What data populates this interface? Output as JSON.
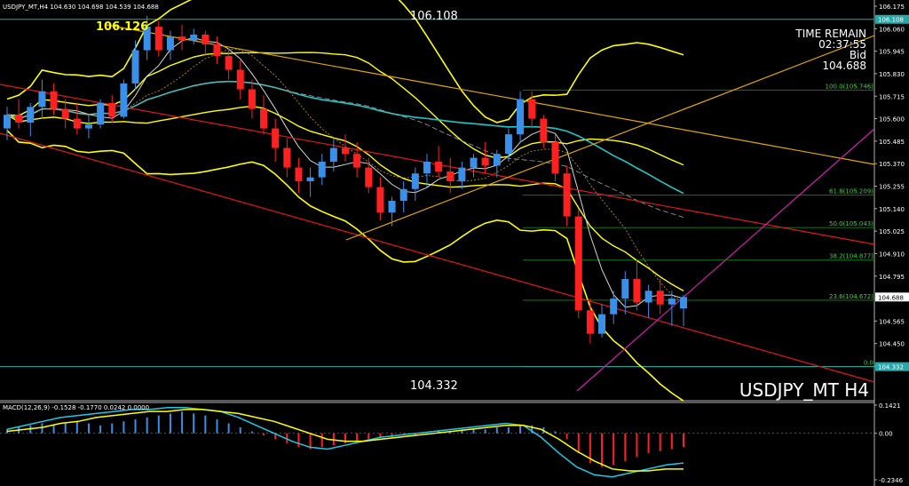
{
  "header": {
    "symbol_info": "USDJPY_MT,H4  104.630 104.698 104.539 104.688"
  },
  "info_box": {
    "line1": "TIME REMAIN",
    "line2": "02:37:55",
    "line3": "Bid",
    "line4": "104.688"
  },
  "watermark": "USDJPY_MT H4",
  "labels": {
    "high_line": "106.108",
    "low_line": "104.332",
    "peak_label": "106.126"
  },
  "macd": {
    "title": "MACD(12,26,9) -0.1528 -0.1770 0.0242 0.0000"
  },
  "colors": {
    "bull": "#3a8fe8",
    "bear": "#ff2020",
    "bollinger": "#ffff00",
    "channel": "#e01818",
    "trend": "#e0a800",
    "ma_long": "#20c8c8",
    "ma_short": "#d8d8d8",
    "fib": "#0e7a0e",
    "diag": "#d020b0",
    "hline": "#2aa8a8",
    "fib_label": "#3cd23c"
  },
  "chart_data": [
    {
      "type": "candlestick",
      "price_range": [
        104.332,
        106.175
      ],
      "y_ticks": [
        "106.175",
        "106.060",
        "105.945",
        "105.830",
        "105.715",
        "105.600",
        "105.485",
        "105.370",
        "105.255",
        "105.140",
        "105.025",
        "104.910",
        "104.795",
        "104.680",
        "104.565",
        "104.450",
        "104.335"
      ],
      "ohlc": [
        [
          105.55,
          105.66,
          105.49,
          105.62
        ],
        [
          105.62,
          105.7,
          105.55,
          105.58
        ],
        [
          105.58,
          105.68,
          105.51,
          105.66
        ],
        [
          105.66,
          105.8,
          105.6,
          105.74
        ],
        [
          105.74,
          105.78,
          105.62,
          105.65
        ],
        [
          105.65,
          105.7,
          105.55,
          105.6
        ],
        [
          105.6,
          105.68,
          105.52,
          105.55
        ],
        [
          105.55,
          105.62,
          105.5,
          105.57
        ],
        [
          105.57,
          105.7,
          105.55,
          105.68
        ],
        [
          105.68,
          105.72,
          105.58,
          105.61
        ],
        [
          105.61,
          105.8,
          105.6,
          105.78
        ],
        [
          105.78,
          106.0,
          105.75,
          105.95
        ],
        [
          105.95,
          106.126,
          105.9,
          106.07
        ],
        [
          106.07,
          106.1,
          105.92,
          105.95
        ],
        [
          105.95,
          106.05,
          105.9,
          106.02
        ],
        [
          106.02,
          106.08,
          105.95,
          106.0
        ],
        [
          106.0,
          106.06,
          105.98,
          106.03
        ],
        [
          106.03,
          106.05,
          105.92,
          105.98
        ],
        [
          105.98,
          106.02,
          105.88,
          105.92
        ],
        [
          105.92,
          105.96,
          105.8,
          105.85
        ],
        [
          105.85,
          105.9,
          105.7,
          105.75
        ],
        [
          105.75,
          105.8,
          105.6,
          105.65
        ],
        [
          105.65,
          105.72,
          105.52,
          105.55
        ],
        [
          105.55,
          105.6,
          105.38,
          105.45
        ],
        [
          105.45,
          105.5,
          105.3,
          105.35
        ],
        [
          105.35,
          105.4,
          105.22,
          105.28
        ],
        [
          105.28,
          105.35,
          105.2,
          105.3
        ],
        [
          105.3,
          105.42,
          105.26,
          105.38
        ],
        [
          105.38,
          105.5,
          105.33,
          105.45
        ],
        [
          105.45,
          105.52,
          105.38,
          105.42
        ],
        [
          105.42,
          105.48,
          105.3,
          105.35
        ],
        [
          105.35,
          105.4,
          105.22,
          105.25
        ],
        [
          105.25,
          105.3,
          105.08,
          105.12
        ],
        [
          105.12,
          105.2,
          105.05,
          105.18
        ],
        [
          105.18,
          105.28,
          105.12,
          105.24
        ],
        [
          105.24,
          105.35,
          105.18,
          105.32
        ],
        [
          105.32,
          105.42,
          105.25,
          105.38
        ],
        [
          105.38,
          105.46,
          105.3,
          105.33
        ],
        [
          105.33,
          105.4,
          105.22,
          105.28
        ],
        [
          105.28,
          105.38,
          105.24,
          105.35
        ],
        [
          105.35,
          105.42,
          105.3,
          105.4
        ],
        [
          105.4,
          105.48,
          105.32,
          105.36
        ],
        [
          105.36,
          105.44,
          105.3,
          105.42
        ],
        [
          105.42,
          105.55,
          105.38,
          105.52
        ],
        [
          105.52,
          105.74,
          105.48,
          105.7
        ],
        [
          105.7,
          105.74,
          105.55,
          105.6
        ],
        [
          105.6,
          105.62,
          105.45,
          105.48
        ],
        [
          105.48,
          105.52,
          105.28,
          105.32
        ],
        [
          105.32,
          105.36,
          105.05,
          105.1
        ],
        [
          105.1,
          105.14,
          104.58,
          104.62
        ],
        [
          104.62,
          104.68,
          104.45,
          104.5
        ],
        [
          104.5,
          104.65,
          104.48,
          104.6
        ],
        [
          104.6,
          104.72,
          104.55,
          104.68
        ],
        [
          104.68,
          104.82,
          104.6,
          104.78
        ],
        [
          104.78,
          104.88,
          104.62,
          104.66
        ],
        [
          104.66,
          104.75,
          104.58,
          104.72
        ],
        [
          104.72,
          104.78,
          104.6,
          104.65
        ],
        [
          104.65,
          104.72,
          104.54,
          104.68
        ],
        [
          104.63,
          104.698,
          104.539,
          104.688
        ]
      ],
      "fibonacci": [
        {
          "label": "100.0(105.746)",
          "price": 105.746
        },
        {
          "label": "61.8(105.209)",
          "price": 105.209
        },
        {
          "label": "50.0(105.043)",
          "price": 105.043
        },
        {
          "label": "38.2(104.877)",
          "price": 104.877
        },
        {
          "label": "23.6(104.672)",
          "price": 104.672
        },
        {
          "label": "0.0",
          "price": 104.332
        }
      ],
      "horizontal_levels": [
        106.108,
        104.332
      ],
      "current_price": 104.688
    },
    {
      "type": "bar",
      "title": "MACD(12,26,9)",
      "y_ticks": [
        "0.1421",
        "0.00",
        "-0.2346"
      ],
      "ylim": [
        -0.2346,
        0.1421
      ],
      "values": [
        0.02,
        0.03,
        0.04,
        0.05,
        0.04,
        0.05,
        0.06,
        0.05,
        0.04,
        0.05,
        0.06,
        0.07,
        0.08,
        0.09,
        0.1,
        0.11,
        0.1,
        0.09,
        0.07,
        0.05,
        0.03,
        0.01,
        -0.01,
        -0.03,
        -0.05,
        -0.07,
        -0.08,
        -0.07,
        -0.06,
        -0.05,
        -0.04,
        -0.03,
        -0.02,
        -0.02,
        -0.01,
        -0.01,
        0.0,
        0.01,
        0.01,
        0.02,
        0.02,
        0.02,
        0.03,
        0.03,
        0.04,
        0.04,
        0.03,
        0.01,
        -0.03,
        -0.1,
        -0.15,
        -0.17,
        -0.16,
        -0.14,
        -0.12,
        -0.1,
        -0.09,
        -0.08,
        -0.07
      ],
      "series": [
        {
          "name": "MACD",
          "values": [
            0.02,
            0.04,
            0.06,
            0.08,
            0.09,
            0.1,
            0.11,
            0.12,
            0.12,
            0.13,
            0.13,
            0.12,
            0.11,
            0.08,
            0.04,
            0.0,
            -0.04,
            -0.07,
            -0.08,
            -0.06,
            -0.04,
            -0.02,
            -0.01,
            0.0,
            0.01,
            0.02,
            0.03,
            0.04,
            0.05,
            0.04,
            -0.02,
            -0.1,
            -0.17,
            -0.21,
            -0.22,
            -0.2,
            -0.18,
            -0.16,
            -0.15
          ]
        },
        {
          "name": "Signal",
          "values": [
            0.01,
            0.02,
            0.03,
            0.05,
            0.06,
            0.08,
            0.09,
            0.1,
            0.11,
            0.11,
            0.12,
            0.12,
            0.11,
            0.1,
            0.08,
            0.06,
            0.03,
            0.0,
            -0.03,
            -0.04,
            -0.04,
            -0.03,
            -0.02,
            -0.01,
            0.0,
            0.01,
            0.02,
            0.03,
            0.04,
            0.04,
            0.02,
            -0.03,
            -0.09,
            -0.14,
            -0.18,
            -0.19,
            -0.19,
            -0.18,
            -0.18
          ]
        }
      ]
    }
  ]
}
